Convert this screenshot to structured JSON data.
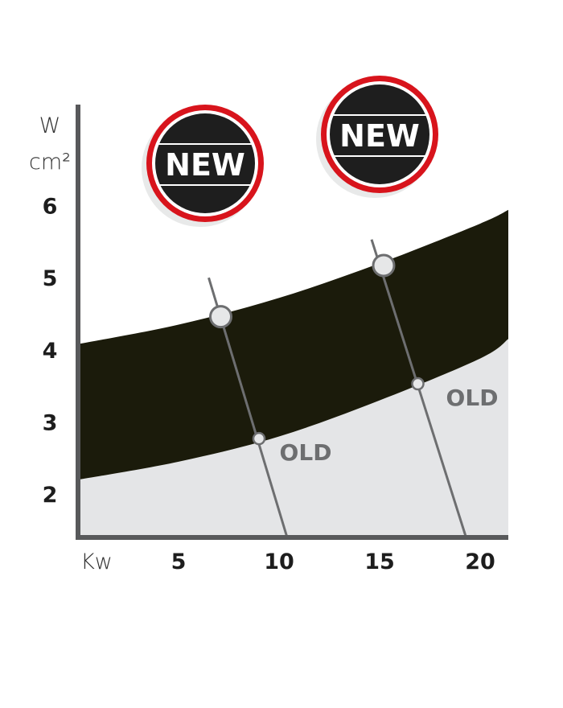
{
  "chart_data": {
    "type": "area",
    "ylabel_lines": [
      "W",
      "cm²"
    ],
    "xlabel": "Kw",
    "xlim": [
      0,
      21.4
    ],
    "ylim": [
      1.4,
      7.4
    ],
    "x_ticks": [
      5,
      10,
      15,
      20
    ],
    "y_ticks": [
      2,
      3,
      4,
      5,
      6
    ],
    "grid": false,
    "band": {
      "x": [
        0,
        5,
        10,
        15,
        20,
        21.4
      ],
      "upper": [
        4.08,
        4.35,
        4.72,
        5.2,
        5.75,
        5.94
      ],
      "lower": [
        2.2,
        2.45,
        2.8,
        3.3,
        3.88,
        4.15
      ],
      "band_color": "#1b1b0b",
      "below_color": "#e4e5e7"
    },
    "comparison_lines": [
      {
        "top": [
          6.5,
          5.0
        ],
        "bottom": [
          10.4,
          1.4
        ],
        "new_point": [
          7.1,
          4.46
        ],
        "old_point": [
          9.0,
          2.77
        ],
        "old_label": "OLD",
        "new_badge": "NEW"
      },
      {
        "top": [
          14.6,
          5.53
        ],
        "bottom": [
          19.3,
          1.4
        ],
        "new_point": [
          15.2,
          5.17
        ],
        "old_point": [
          16.9,
          3.53
        ],
        "old_label": "OLD",
        "new_badge": "NEW"
      }
    ],
    "badge_colors": {
      "ring": "#d8141c",
      "fill": "#1e1e1e",
      "text": "#ffffff"
    },
    "axis_color": "#58595b",
    "line_color": "#6d6e70"
  }
}
